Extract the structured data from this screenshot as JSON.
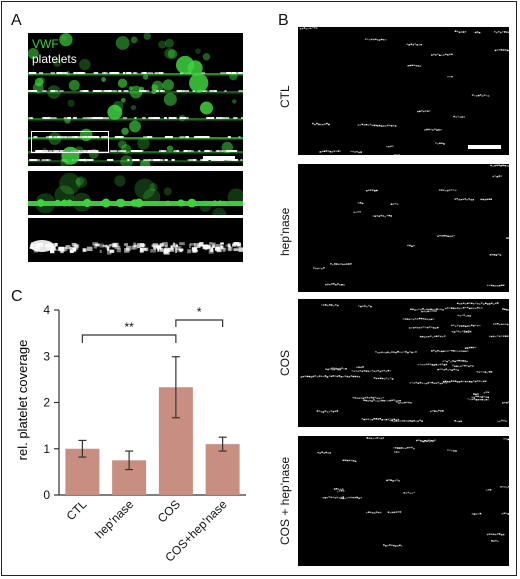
{
  "panels": {
    "a": "A",
    "b": "B",
    "c": "C"
  },
  "panel_a": {
    "channels": {
      "vwf": "VWF",
      "platelets": "platelets"
    },
    "vwf_color": "#3fd23f",
    "platelet_color": "#ffffff"
  },
  "panel_b": {
    "rows": [
      "CTL",
      "hep'nase",
      "COS",
      "COS + hep'nase"
    ]
  },
  "chart_data": {
    "type": "bar",
    "categories": [
      "CTL",
      "hep'nase",
      "COS",
      "COS+hep'nase"
    ],
    "values": [
      1.0,
      0.75,
      2.33,
      1.1
    ],
    "error": [
      0.18,
      0.2,
      0.66,
      0.15
    ],
    "ylabel": "rel. platelet coverage",
    "ylim": [
      0,
      4
    ],
    "yticks": [
      "0",
      "1",
      "2",
      "3",
      "4"
    ],
    "bar_color": "#c98e82",
    "significance": [
      {
        "from": "CTL",
        "to": "COS",
        "label": "**"
      },
      {
        "from": "COS",
        "to": "COS+hep'nase",
        "label": "*"
      }
    ]
  }
}
